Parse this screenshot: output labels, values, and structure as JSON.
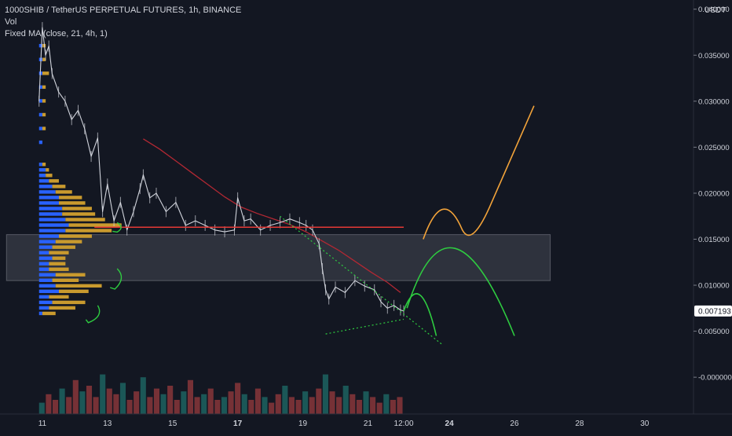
{
  "legend": {
    "symbol": "1000SHIB / TetherUS PERPETUAL FUTURES, 1h, BINANCE",
    "vol": "Vol",
    "ma": "Fixed MA (close, 21, 4h, 1)"
  },
  "colors": {
    "background": "#131722",
    "grid": "#1e222d",
    "candle": "#d1d4dc",
    "volume_profile_up": "#2962ff",
    "volume_profile_down": "#c99a2e",
    "ma_line": "#b22833",
    "resistance_line": "#e53935",
    "zone": "#787b86",
    "green_annotation": "#2ecc40",
    "orange_annotation": "#f2a33a",
    "price_label_bg": "#ffffff"
  },
  "chart_data": {
    "type": "line",
    "title": "1000SHIB / TetherUS PERPETUAL FUTURES, 1h, BINANCE",
    "y_axis_unit": "USDT",
    "y_ticks": [
      "0.040000",
      "0.035000",
      "0.030000",
      "0.025000",
      "0.020000",
      "0.015000",
      "0.010000",
      "0.005000",
      "-0.000000"
    ],
    "y_tick_values": [
      0.04,
      0.035,
      0.03,
      0.025,
      0.02,
      0.015,
      0.01,
      0.005,
      0.0
    ],
    "x_ticks": [
      "11",
      "13",
      "15",
      "17",
      "19",
      "21",
      "12:00",
      "24",
      "26",
      "28",
      "30"
    ],
    "x_tick_values": [
      11,
      13,
      15,
      17,
      19,
      21,
      22.1,
      23.5,
      25.5,
      27.5,
      29.5
    ],
    "bold_x_ticks": [
      "17",
      "24"
    ],
    "ylim": [
      -0.004,
      0.041
    ],
    "xlim": [
      9.7,
      31.0
    ],
    "last_price": "0.007193",
    "series": [
      {
        "name": "Fixed MA (close, 21, 4h, 1)",
        "x": [
          14.1,
          14.6,
          15.1,
          15.6,
          16.1,
          16.6,
          17.1,
          17.6,
          18.1,
          18.6,
          19.1,
          19.6,
          20.1,
          20.6,
          21.1,
          21.6,
          22.0
        ],
        "y": [
          0.0259,
          0.0248,
          0.0235,
          0.0222,
          0.0209,
          0.0196,
          0.0185,
          0.0178,
          0.0172,
          0.0166,
          0.0158,
          0.0148,
          0.0138,
          0.0126,
          0.0114,
          0.0103,
          0.0092
        ]
      },
      {
        "name": "price",
        "x": [
          10.9,
          11.0,
          11.1,
          11.2,
          11.3,
          11.5,
          11.7,
          11.9,
          12.1,
          12.3,
          12.5,
          12.7,
          12.85,
          13.0,
          13.2,
          13.4,
          13.6,
          13.8,
          14.0,
          14.1,
          14.3,
          14.5,
          14.8,
          15.1,
          15.4,
          15.7,
          16.0,
          16.3,
          16.6,
          16.9,
          17.0,
          17.2,
          17.4,
          17.7,
          18.0,
          18.3,
          18.6,
          18.9,
          19.1,
          19.3,
          19.5,
          19.6,
          19.7,
          19.8,
          20.0,
          20.3,
          20.6,
          20.9,
          21.2,
          21.4,
          21.6,
          21.8,
          22.0,
          22.1
        ],
        "y": [
          0.03,
          0.038,
          0.035,
          0.036,
          0.033,
          0.031,
          0.03,
          0.028,
          0.029,
          0.027,
          0.024,
          0.026,
          0.018,
          0.021,
          0.017,
          0.019,
          0.016,
          0.018,
          0.0205,
          0.022,
          0.0195,
          0.02,
          0.018,
          0.019,
          0.0165,
          0.017,
          0.0165,
          0.016,
          0.0158,
          0.016,
          0.0195,
          0.017,
          0.0172,
          0.016,
          0.0165,
          0.0168,
          0.0172,
          0.0168,
          0.0165,
          0.016,
          0.0145,
          0.0118,
          0.0095,
          0.0085,
          0.0098,
          0.0092,
          0.0105,
          0.0099,
          0.0095,
          0.0082,
          0.0075,
          0.0078,
          0.0073,
          0.0072
        ]
      }
    ],
    "horizontal_line": {
      "y": 0.0163,
      "x_from": 12.6,
      "x_to": 22.1
    },
    "zone": {
      "y_from": 0.0105,
      "y_to": 0.0155,
      "x_from": 9.9,
      "x_to": 26.6
    },
    "volume_bars": [
      4,
      7,
      5,
      9,
      6,
      12,
      8,
      10,
      6,
      14,
      9,
      7,
      11,
      5,
      8,
      13,
      6,
      9,
      7,
      10,
      5,
      8,
      12,
      6,
      7,
      9,
      5,
      6,
      8,
      11,
      7,
      5,
      9,
      6,
      4,
      7,
      10,
      6,
      5,
      8,
      6,
      9,
      14,
      8,
      6,
      10,
      7,
      5,
      8,
      6,
      4,
      7,
      5,
      6
    ],
    "volume_profile": [
      {
        "p": 0.0069,
        "up": 1,
        "down": 4
      },
      {
        "p": 0.0075,
        "up": 3,
        "down": 8
      },
      {
        "p": 0.0081,
        "up": 4,
        "down": 10
      },
      {
        "p": 0.0087,
        "up": 3,
        "down": 6
      },
      {
        "p": 0.0093,
        "up": 6,
        "down": 9
      },
      {
        "p": 0.0099,
        "up": 5,
        "down": 14
      },
      {
        "p": 0.0105,
        "up": 4,
        "down": 8
      },
      {
        "p": 0.0111,
        "up": 5,
        "down": 9
      },
      {
        "p": 0.0117,
        "up": 3,
        "down": 6
      },
      {
        "p": 0.0123,
        "up": 3,
        "down": 5
      },
      {
        "p": 0.0129,
        "up": 4,
        "down": 4
      },
      {
        "p": 0.0135,
        "up": 3,
        "down": 6
      },
      {
        "p": 0.0141,
        "up": 4,
        "down": 7
      },
      {
        "p": 0.0147,
        "up": 5,
        "down": 8
      },
      {
        "p": 0.0153,
        "up": 6,
        "down": 10
      },
      {
        "p": 0.0159,
        "up": 8,
        "down": 14
      },
      {
        "p": 0.0165,
        "up": 9,
        "down": 16
      },
      {
        "p": 0.0171,
        "up": 8,
        "down": 12
      },
      {
        "p": 0.0177,
        "up": 7,
        "down": 10
      },
      {
        "p": 0.0183,
        "up": 7,
        "down": 9
      },
      {
        "p": 0.0189,
        "up": 6,
        "down": 8
      },
      {
        "p": 0.0195,
        "up": 6,
        "down": 7
      },
      {
        "p": 0.0201,
        "up": 5,
        "down": 5
      },
      {
        "p": 0.0207,
        "up": 4,
        "down": 4
      },
      {
        "p": 0.0213,
        "up": 3,
        "down": 3
      },
      {
        "p": 0.0219,
        "up": 2,
        "down": 2
      },
      {
        "p": 0.0225,
        "up": 2,
        "down": 1
      },
      {
        "p": 0.0231,
        "up": 1,
        "down": 1
      },
      {
        "p": 0.0255,
        "up": 1,
        "down": 0
      },
      {
        "p": 0.027,
        "up": 1,
        "down": 1
      },
      {
        "p": 0.0285,
        "up": 1,
        "down": 1
      },
      {
        "p": 0.03,
        "up": 1,
        "down": 1
      },
      {
        "p": 0.0315,
        "up": 1,
        "down": 1
      },
      {
        "p": 0.033,
        "up": 1,
        "down": 2
      },
      {
        "p": 0.0345,
        "up": 1,
        "down": 1
      },
      {
        "p": 0.036,
        "up": 1,
        "down": 1
      }
    ],
    "grid": false,
    "legend_position": "top-left"
  }
}
